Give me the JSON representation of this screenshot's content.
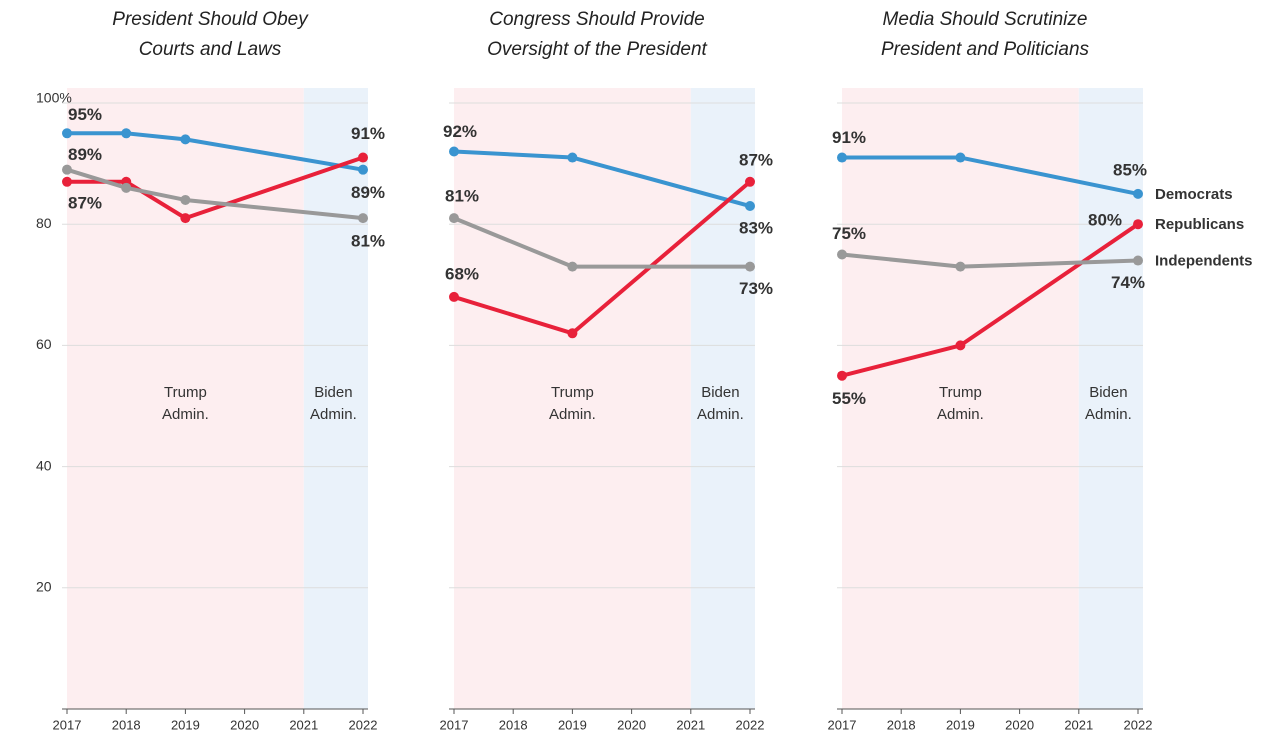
{
  "chart_data": [
    {
      "type": "line",
      "title": [
        "President Should Obey",
        "Courts and Laws"
      ],
      "x": [
        2017,
        2018,
        2019,
        2022
      ],
      "xlim": [
        2017,
        2022
      ],
      "xticks": [
        2017,
        2018,
        2019,
        2020,
        2021,
        2022
      ],
      "ylim": [
        0,
        100
      ],
      "yticks": [
        {
          "value": 100,
          "label": "100%"
        },
        80,
        60,
        40,
        20
      ],
      "show_ytick_labels": true,
      "grid": true,
      "shading": [
        {
          "from": 2017,
          "to": 2021,
          "color": "#fdeef0",
          "label": [
            "Trump",
            "Admin."
          ]
        },
        {
          "from": 2021,
          "to": 2022,
          "color": "#eaf2fa",
          "label": [
            "Biden",
            "Admin."
          ]
        }
      ],
      "series": [
        {
          "color": "#3a94d0",
          "values": [
            95,
            95,
            94,
            89
          ],
          "value_labels": [
            "95%",
            null,
            null,
            "89%"
          ]
        },
        {
          "color": "#e8213a",
          "values": [
            87,
            87,
            81,
            91
          ],
          "value_labels": [
            "87%",
            null,
            null,
            "91%"
          ]
        },
        {
          "color": "#999999",
          "values": [
            89,
            86,
            84,
            81
          ],
          "value_labels": [
            "89%",
            null,
            null,
            "81%"
          ]
        }
      ]
    },
    {
      "type": "line",
      "title": [
        "Congress Should Provide",
        "Oversight of the President"
      ],
      "x": [
        2017,
        2019,
        2022
      ],
      "xlim": [
        2017,
        2022
      ],
      "xticks": [
        2017,
        2018,
        2019,
        2020,
        2021,
        2022
      ],
      "ylim": [
        0,
        100
      ],
      "yticks": [
        100,
        80,
        60,
        40,
        20
      ],
      "show_ytick_labels": false,
      "grid": true,
      "shading": [
        {
          "from": 2017,
          "to": 2021,
          "color": "#fdeef0",
          "label": [
            "Trump",
            "Admin."
          ]
        },
        {
          "from": 2021,
          "to": 2022,
          "color": "#eaf2fa",
          "label": [
            "Biden",
            "Admin."
          ]
        }
      ],
      "series": [
        {
          "color": "#3a94d0",
          "values": [
            92,
            91,
            83
          ],
          "value_labels": [
            "92%",
            null,
            "83%"
          ]
        },
        {
          "color": "#e8213a",
          "values": [
            68,
            62,
            87
          ],
          "value_labels": [
            "68%",
            null,
            "87%"
          ]
        },
        {
          "color": "#999999",
          "values": [
            81,
            73,
            73
          ],
          "value_labels": [
            "81%",
            null,
            "73%"
          ]
        }
      ]
    },
    {
      "type": "line",
      "title": [
        "Media Should Scrutinize",
        "President and Politicians"
      ],
      "x": [
        2017,
        2019,
        2022
      ],
      "xlim": [
        2017,
        2022
      ],
      "xticks": [
        2017,
        2018,
        2019,
        2020,
        2021,
        2022
      ],
      "ylim": [
        0,
        100
      ],
      "yticks": [
        100,
        80,
        60,
        40,
        20
      ],
      "show_ytick_labels": false,
      "grid": true,
      "legend": "right",
      "shading": [
        {
          "from": 2017,
          "to": 2021,
          "color": "#fdeef0",
          "label": [
            "Trump",
            "Admin."
          ]
        },
        {
          "from": 2021,
          "to": 2022,
          "color": "#eaf2fa",
          "label": [
            "Biden",
            "Admin."
          ]
        }
      ],
      "series": [
        {
          "name": "Democrats",
          "color": "#3a94d0",
          "values": [
            91,
            91,
            85
          ],
          "value_labels": [
            "91%",
            null,
            "85%"
          ]
        },
        {
          "name": "Republicans",
          "color": "#e8213a",
          "values": [
            55,
            60,
            80
          ],
          "value_labels": [
            "55%",
            null,
            "80%"
          ]
        },
        {
          "name": "Independents",
          "color": "#999999",
          "values": [
            75,
            73,
            74
          ],
          "value_labels": [
            "75%",
            null,
            "74%"
          ]
        }
      ]
    }
  ]
}
